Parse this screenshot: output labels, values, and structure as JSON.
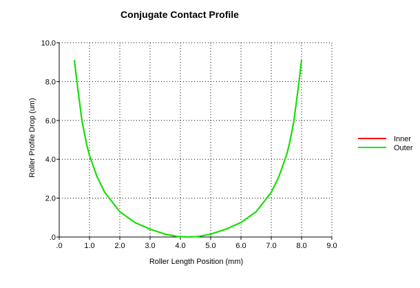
{
  "chart_data": {
    "type": "line",
    "title": "Conjugate Contact Profile",
    "xlabel": "Roller Length Position (mm)",
    "ylabel": "Roller Profile Drop (um)",
    "xlim": [
      0,
      9
    ],
    "ylim": [
      0,
      10
    ],
    "x_ticks": [
      ".0",
      "1.0",
      "2.0",
      "3.0",
      "4.0",
      "5.0",
      "6.0",
      "7.0",
      "8.0",
      "9.0"
    ],
    "y_ticks": [
      ".0",
      "2.0",
      "4.0",
      "6.0",
      "8.0",
      "10.0"
    ],
    "grid": true,
    "legend_position": "right",
    "x": [
      0.5,
      0.6,
      0.75,
      0.9,
      1.0,
      1.25,
      1.5,
      2.0,
      2.5,
      3.0,
      3.5,
      3.9,
      4.25,
      4.6,
      5.0,
      5.5,
      6.0,
      6.5,
      7.0,
      7.25,
      7.5,
      7.6,
      7.75,
      7.9,
      8.0
    ],
    "series": [
      {
        "name": "Inner",
        "color": "#ff0000",
        "values": [
          9.1,
          7.8,
          6.0,
          4.8,
          4.2,
          3.1,
          2.3,
          1.3,
          0.75,
          0.4,
          0.15,
          0.03,
          0.0,
          0.03,
          0.15,
          0.4,
          0.75,
          1.3,
          2.3,
          3.1,
          4.2,
          4.8,
          6.0,
          7.8,
          9.1
        ]
      },
      {
        "name": "Outer",
        "color": "#00ee00",
        "values": [
          9.1,
          7.8,
          6.0,
          4.8,
          4.2,
          3.1,
          2.3,
          1.3,
          0.75,
          0.4,
          0.15,
          0.03,
          0.0,
          0.03,
          0.15,
          0.4,
          0.75,
          1.3,
          2.3,
          3.1,
          4.2,
          4.8,
          6.0,
          7.8,
          9.1
        ]
      }
    ]
  }
}
